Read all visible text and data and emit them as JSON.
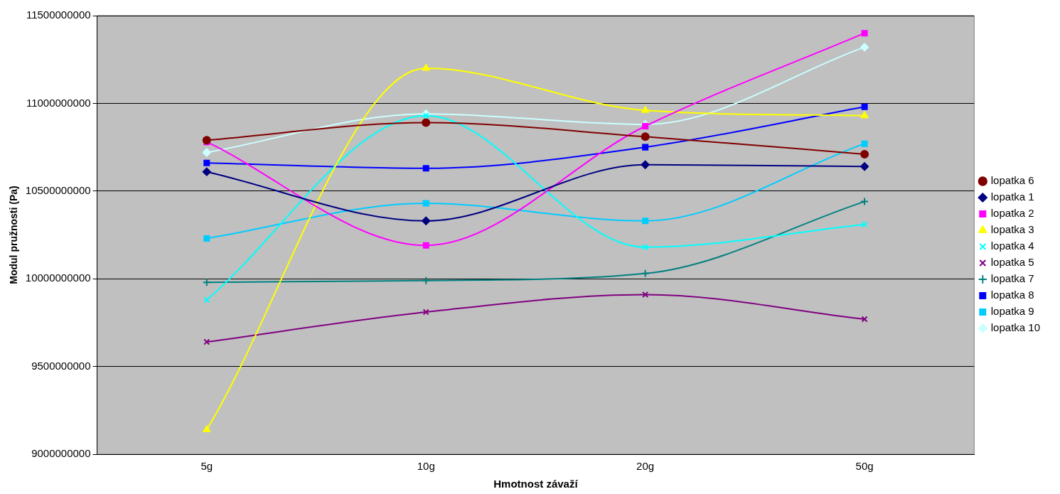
{
  "chart_data": {
    "type": "line",
    "xlabel": "Hmotnost závaží",
    "ylabel": "Modul pružnosti (Pa)",
    "categories": [
      "5g",
      "10g",
      "20g",
      "50g"
    ],
    "ylim": [
      9000000000,
      11500000000
    ],
    "yticks": [
      9000000000,
      9500000000,
      10000000000,
      10500000000,
      11000000000,
      11500000000
    ],
    "grid": "y",
    "legend": "right",
    "line_style": "solid",
    "series": [
      {
        "name": "lopatka 6",
        "color": "#800000",
        "marker": "circle",
        "values": [
          10790000000,
          10890000000,
          10810000000,
          10710000000
        ]
      },
      {
        "name": "lopatka 1",
        "color": "#000080",
        "marker": "diamond",
        "values": [
          10610000000,
          10330000000,
          10650000000,
          10640000000
        ]
      },
      {
        "name": "lopatka 2",
        "color": "#ff00ff",
        "marker": "square",
        "values": [
          10780000000,
          10190000000,
          10870000000,
          11400000000
        ]
      },
      {
        "name": "lopatka 3",
        "color": "#ffff00",
        "marker": "triangle",
        "values": [
          9140000000,
          11200000000,
          10960000000,
          10930000000
        ]
      },
      {
        "name": "lopatka 4",
        "color": "#00ffff",
        "marker": "cross",
        "values": [
          9880000000,
          10930000000,
          10180000000,
          10310000000
        ]
      },
      {
        "name": "lopatka 5",
        "color": "#800080",
        "marker": "cross",
        "values": [
          9640000000,
          9810000000,
          9910000000,
          9770000000
        ]
      },
      {
        "name": "lopatka 7",
        "color": "#008080",
        "marker": "plus",
        "values": [
          9980000000,
          9990000000,
          10030000000,
          10440000000
        ]
      },
      {
        "name": "lopatka 8",
        "color": "#0000ff",
        "marker": "square",
        "values": [
          10660000000,
          10630000000,
          10750000000,
          10980000000
        ]
      },
      {
        "name": "lopatka 9",
        "color": "#00ccff",
        "marker": "square",
        "values": [
          10230000000,
          10430000000,
          10330000000,
          10770000000
        ]
      },
      {
        "name": "lopatka 10",
        "color": "#ccffff",
        "marker": "diamond",
        "values": [
          10720000000,
          10940000000,
          10880000000,
          11320000000
        ]
      }
    ]
  }
}
